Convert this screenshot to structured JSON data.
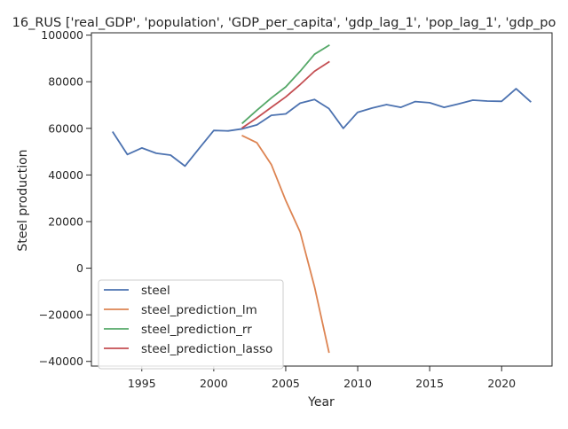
{
  "chart_data": {
    "type": "line",
    "title": "16_RUS ['real_GDP', 'population', 'GDP_per_capita', 'gdp_lag_1', 'pop_lag_1', 'gdp_po",
    "xlabel": "Year",
    "ylabel": "Steel production",
    "xlim": [
      1991.5,
      2023.5
    ],
    "ylim": [
      -42000,
      101000
    ],
    "xticks": [
      1995,
      2000,
      2005,
      2010,
      2015,
      2020
    ],
    "yticks": [
      -40000,
      -20000,
      0,
      20000,
      40000,
      60000,
      80000,
      100000
    ],
    "grid": false,
    "legend_position": "lower-left",
    "series": [
      {
        "name": "steel",
        "color": "#4c72b0",
        "x": [
          1993,
          1994,
          1995,
          1996,
          1997,
          1998,
          1999,
          2000,
          2001,
          2002,
          2003,
          2004,
          2005,
          2006,
          2007,
          2008,
          2009,
          2010,
          2011,
          2012,
          2013,
          2014,
          2015,
          2016,
          2017,
          2018,
          2019,
          2020,
          2021,
          2022
        ],
        "y": [
          58300,
          48800,
          51600,
          49300,
          48500,
          43800,
          51500,
          59100,
          58900,
          59800,
          61500,
          65600,
          66200,
          70800,
          72400,
          68500,
          60000,
          66900,
          68700,
          70200,
          69000,
          71500,
          71000,
          69000,
          70500,
          72100,
          71700,
          71600,
          77000,
          71500
        ]
      },
      {
        "name": "steel_prediction_lm",
        "color": "#dd8452",
        "x": [
          2002,
          2003,
          2004,
          2005,
          2006,
          2007,
          2008
        ],
        "y": [
          56800,
          53800,
          44500,
          29000,
          15500,
          -8000,
          -36000
        ]
      },
      {
        "name": "steel_prediction_rr",
        "color": "#55a868",
        "x": [
          2002,
          2003,
          2004,
          2005,
          2006,
          2007,
          2008
        ],
        "y": [
          62300,
          67800,
          73000,
          77800,
          84500,
          91800,
          95600
        ]
      },
      {
        "name": "steel_prediction_lasso",
        "color": "#c44e52",
        "x": [
          2002,
          2003,
          2004,
          2005,
          2006,
          2007,
          2008
        ],
        "y": [
          60300,
          64500,
          69000,
          73500,
          78800,
          84500,
          88500
        ]
      }
    ]
  }
}
